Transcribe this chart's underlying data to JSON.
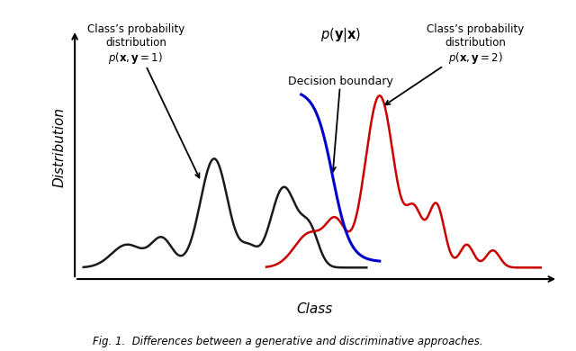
{
  "title": "",
  "xlabel": "Class",
  "ylabel": "Distribution",
  "bg_color": "#ffffff",
  "black_curve_color": "#1a1a1a",
  "red_curve_color": "#cc0000",
  "blue_curve_color": "#0000cc",
  "label_class1_math": "$p(\\mathbf{x}, \\mathbf{y} = 1)$",
  "label_class2_math": "$p(\\mathbf{x}, \\mathbf{y} = 2)$",
  "label_boundary_math": "$p(\\mathbf{y}|\\mathbf{x})$",
  "label_boundary": "Decision boundary",
  "caption": "Fig. 1.  Differences between a generative and discriminative approaches."
}
